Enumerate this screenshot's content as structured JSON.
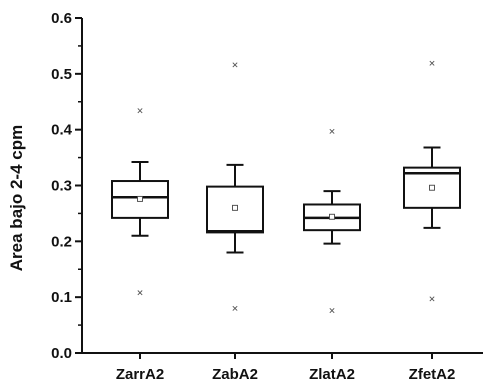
{
  "chart_data": {
    "type": "box",
    "title": "",
    "xlabel": "",
    "ylabel": "Area bajo 2-4 cpm",
    "ylim": [
      0.0,
      0.6
    ],
    "yticks": [
      "0.0",
      "0.1",
      "0.2",
      "0.3",
      "0.4",
      "0.5",
      "0.6"
    ],
    "categories": [
      "ZarrA2",
      "ZabA2",
      "ZlatA2",
      "ZfetA2"
    ],
    "grid": false,
    "legend": "none",
    "boxes": [
      {
        "category": "ZarrA2",
        "q1": 0.242,
        "median": 0.279,
        "q3": 0.308,
        "whisker_low": 0.21,
        "whisker_high": 0.342,
        "mean": 0.276,
        "min": 0.108,
        "max": 0.434
      },
      {
        "category": "ZabA2",
        "q1": 0.216,
        "median": 0.218,
        "q3": 0.298,
        "whisker_low": 0.18,
        "whisker_high": 0.337,
        "mean": 0.26,
        "min": 0.08,
        "max": 0.516
      },
      {
        "category": "ZlatA2",
        "q1": 0.22,
        "median": 0.242,
        "q3": 0.266,
        "whisker_low": 0.196,
        "whisker_high": 0.29,
        "mean": 0.244,
        "min": 0.076,
        "max": 0.397
      },
      {
        "category": "ZfetA2",
        "q1": 0.26,
        "median": 0.322,
        "q3": 0.332,
        "whisker_low": 0.224,
        "whisker_high": 0.368,
        "mean": 0.296,
        "min": 0.097,
        "max": 0.519
      }
    ]
  }
}
